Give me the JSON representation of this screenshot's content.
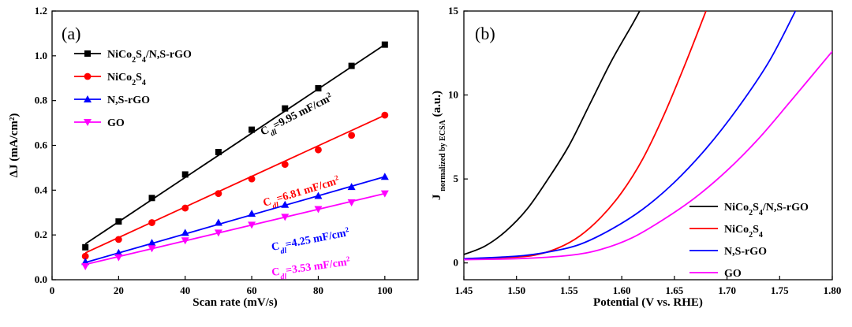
{
  "chart_data": [
    {
      "type": "scatter",
      "panel_label": "(a)",
      "xlabel": "Scan rate (mV/s)",
      "ylabel": "ΔJ (mA/cm²)",
      "xlim": [
        0,
        110
      ],
      "ylim": [
        0,
        1.2
      ],
      "xticks": [
        0,
        20,
        40,
        60,
        80,
        100
      ],
      "yticks": [
        0.0,
        0.2,
        0.4,
        0.6,
        0.8,
        1.0,
        1.2
      ],
      "legend_position": "top-left",
      "series": [
        {
          "name": "NiCo₂S₄/N,S-rGO",
          "color": "#000000",
          "marker": "square",
          "x": [
            10,
            20,
            30,
            40,
            50,
            60,
            70,
            80,
            90,
            100
          ],
          "y": [
            0.145,
            0.26,
            0.365,
            0.47,
            0.57,
            0.67,
            0.765,
            0.855,
            0.955,
            1.05
          ],
          "fit": [
            [
              10,
              0.16
            ],
            [
              100,
              1.05
            ]
          ],
          "annotation": "Cdl=9.95 mF/cm²"
        },
        {
          "name": "NiCo₂S₄",
          "color": "#ff0000",
          "marker": "circle",
          "x": [
            10,
            20,
            30,
            40,
            50,
            60,
            70,
            80,
            90,
            100
          ],
          "y": [
            0.105,
            0.18,
            0.255,
            0.32,
            0.385,
            0.45,
            0.515,
            0.58,
            0.645,
            0.735
          ],
          "fit": [
            [
              10,
              0.12
            ],
            [
              100,
              0.735
            ]
          ],
          "annotation": "Cdl=6.81 mF/cm²"
        },
        {
          "name": "N,S-rGO",
          "color": "#0000ff",
          "marker": "triangle-up",
          "x": [
            10,
            20,
            30,
            40,
            50,
            60,
            70,
            80,
            90,
            100
          ],
          "y": [
            0.08,
            0.12,
            0.165,
            0.21,
            0.255,
            0.295,
            0.335,
            0.375,
            0.415,
            0.46
          ],
          "fit": [
            [
              10,
              0.077
            ],
            [
              100,
              0.46
            ]
          ],
          "annotation": "Cdl=4.25 mF/cm²"
        },
        {
          "name": "GO",
          "color": "#ff00ff",
          "marker": "triangle-down",
          "x": [
            10,
            20,
            30,
            40,
            50,
            60,
            70,
            80,
            90,
            100
          ],
          "y": [
            0.06,
            0.1,
            0.14,
            0.175,
            0.21,
            0.245,
            0.28,
            0.315,
            0.345,
            0.385
          ],
          "fit": [
            [
              10,
              0.068
            ],
            [
              100,
              0.385
            ]
          ],
          "annotation": "Cdl=3.53 mF/cm²"
        }
      ]
    },
    {
      "type": "line",
      "panel_label": "(b)",
      "xlabel": "Potential (V vs. RHE)",
      "ylabel_main": "J",
      "ylabel_sub": "normalized by ECSA",
      "ylabel_unit": "(a.u.)",
      "xlim": [
        1.45,
        1.8
      ],
      "ylim": [
        -1,
        15
      ],
      "xticks": [
        "1.45",
        "1.50",
        "1.55",
        "1.60",
        "1.65",
        "1.70",
        "1.75",
        "1.80"
      ],
      "yticks": [
        0,
        5,
        10,
        15
      ],
      "legend_position": "bottom-right",
      "series": [
        {
          "name": "NiCo₂S₄/N,S-rGO",
          "color": "#000000",
          "x": [
            1.45,
            1.47,
            1.49,
            1.51,
            1.53,
            1.55,
            1.57,
            1.59,
            1.61,
            1.617
          ],
          "y": [
            0.5,
            1.0,
            1.9,
            3.2,
            5.0,
            7.0,
            9.5,
            12.0,
            14.2,
            15.0
          ]
        },
        {
          "name": "NiCo₂S₄",
          "color": "#ff0000",
          "x": [
            1.45,
            1.5,
            1.52,
            1.54,
            1.56,
            1.58,
            1.6,
            1.62,
            1.64,
            1.66,
            1.68
          ],
          "y": [
            0.25,
            0.35,
            0.5,
            0.9,
            1.6,
            2.7,
            4.2,
            6.2,
            8.8,
            11.8,
            15.0
          ]
        },
        {
          "name": "N,S-rGO",
          "color": "#0000ff",
          "x": [
            1.45,
            1.5,
            1.53,
            1.56,
            1.59,
            1.62,
            1.65,
            1.68,
            1.71,
            1.74,
            1.765
          ],
          "y": [
            0.25,
            0.4,
            0.65,
            1.1,
            2.0,
            3.2,
            4.8,
            6.8,
            9.2,
            12.0,
            15.0
          ]
        },
        {
          "name": "GO",
          "color": "#ff00ff",
          "x": [
            1.45,
            1.5,
            1.55,
            1.58,
            1.61,
            1.64,
            1.67,
            1.7,
            1.73,
            1.76,
            1.8
          ],
          "y": [
            0.2,
            0.25,
            0.45,
            0.8,
            1.5,
            2.6,
            3.9,
            5.5,
            7.4,
            9.6,
            12.6
          ]
        }
      ]
    }
  ]
}
